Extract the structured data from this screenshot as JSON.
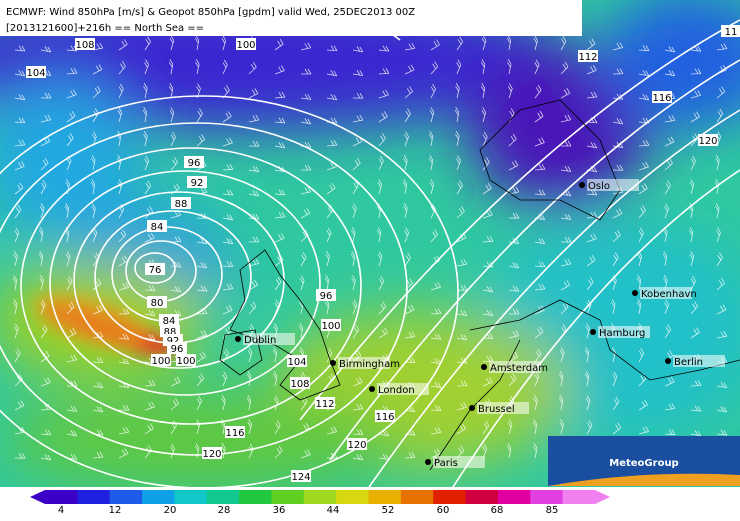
{
  "header": {
    "line1": "ECMWF: Wind 850hPa [m/s] & Geopot 850hPa [gpdm] valid Wed, 25DEC2013 00Z",
    "line2": "[2013121600]+216h  == North Sea =="
  },
  "contour_labels": [
    "108",
    "100",
    "104",
    "112",
    "116",
    "120",
    "96",
    "92",
    "88",
    "84",
    "76",
    "80",
    "84",
    "88",
    "92",
    "96",
    "100",
    "100",
    "96",
    "100",
    "104",
    "108",
    "112",
    "116",
    "116",
    "120",
    "120",
    "124",
    "11"
  ],
  "cities": [
    "Oslo",
    "Kobenhavn",
    "Hamburg",
    "Berlin",
    "Dublin",
    "Birmingham",
    "Amsterdam",
    "London",
    "Brussel",
    "Paris"
  ],
  "logo": "MeteoGroup",
  "colorbar": {
    "ticks": [
      "4",
      "12",
      "20",
      "28",
      "36",
      "44",
      "52",
      "60",
      "68",
      "85"
    ],
    "colors": [
      "#3a00c8",
      "#2020e0",
      "#1c5ce8",
      "#10a0e8",
      "#10c8c8",
      "#10c890",
      "#20c840",
      "#60d020",
      "#a0d820",
      "#d8d810",
      "#e8b000",
      "#e87000",
      "#e02000",
      "#d00040",
      "#e000a0",
      "#e040e0",
      "#f080f0"
    ]
  }
}
